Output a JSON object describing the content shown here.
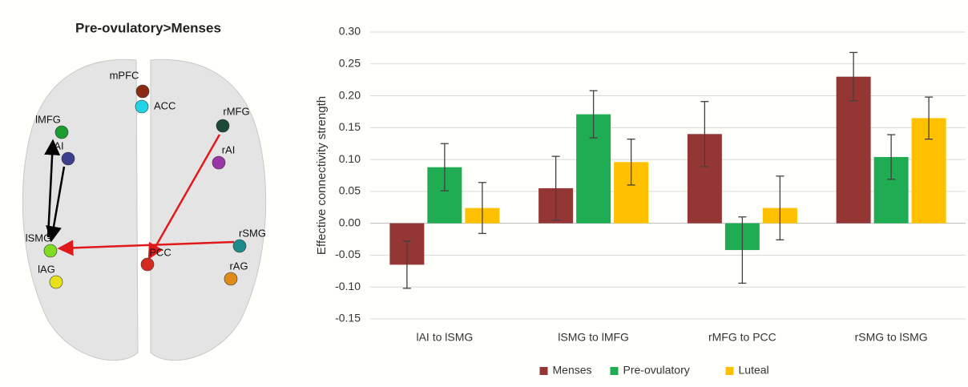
{
  "brain_diagram": {
    "title": "Pre-ovulatory>Menses",
    "nodes": [
      "mPFC",
      "ACC",
      "lMFG",
      "lAI",
      "rMFG",
      "rAI",
      "lSMG",
      "rSMG",
      "PCC",
      "lAG",
      "rAG"
    ]
  },
  "chart_data": {
    "type": "bar",
    "y_label": "Effective connectivity strength",
    "categories": [
      "lAI to lSMG",
      "lSMG to lMFG",
      "rMFG to PCC",
      "rSMG to lSMG"
    ],
    "series": [
      {
        "name": "Menses",
        "color": "#943634",
        "values": [
          -0.065,
          0.055,
          0.14,
          0.23
        ],
        "errors": [
          0.037,
          0.05,
          0.051,
          0.038
        ]
      },
      {
        "name": "Pre-ovulatory",
        "color": "#1fac52",
        "values": [
          0.088,
          0.171,
          -0.042,
          0.104
        ],
        "errors": [
          0.037,
          0.037,
          0.052,
          0.035
        ]
      },
      {
        "name": "Luteal",
        "color": "#ffc000",
        "values": [
          0.024,
          0.096,
          0.024,
          0.165
        ],
        "errors": [
          0.04,
          0.036,
          0.05,
          0.033
        ]
      }
    ],
    "ylim": [
      -0.15,
      0.3
    ],
    "yticks": [
      {
        "value": 0.3,
        "label": "0.30"
      },
      0.25,
      {
        "value": 0.2,
        "label": "0.20"
      },
      0.15,
      {
        "value": 0.1,
        "label": "0.10"
      },
      0.05,
      {
        "value": 0,
        "label": "0.00"
      },
      -0.05,
      {
        "value": -0.1,
        "label": "-0.10"
      },
      -0.15
    ],
    "grid": true,
    "legend": "bottom"
  }
}
